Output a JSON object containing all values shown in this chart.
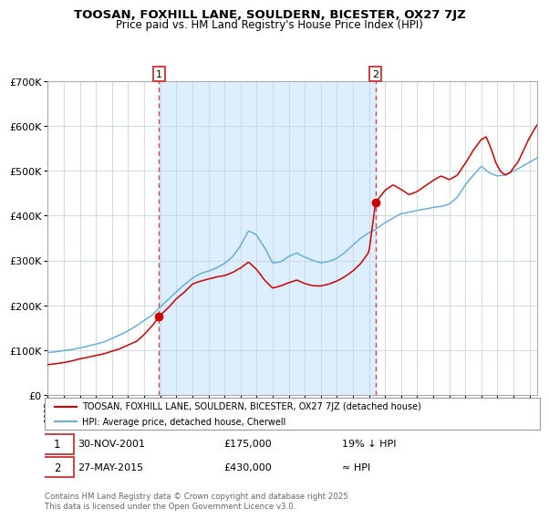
{
  "title": "TOOSAN, FOXHILL LANE, SOULDERN, BICESTER, OX27 7JZ",
  "subtitle": "Price paid vs. HM Land Registry's House Price Index (HPI)",
  "legend_line1": "TOOSAN, FOXHILL LANE, SOULDERN, BICESTER, OX27 7JZ (detached house)",
  "legend_line2": "HPI: Average price, detached house, Cherwell",
  "purchase1_date": "30-NOV-2001",
  "purchase1_price": 175000,
  "purchase1_note": "19% ↓ HPI",
  "purchase2_date": "27-MAY-2015",
  "purchase2_price": 430000,
  "purchase2_note": "≈ HPI",
  "footer": "Contains HM Land Registry data © Crown copyright and database right 2025.\nThis data is licensed under the Open Government Licence v3.0.",
  "vline1_year": 2001.92,
  "vline2_year": 2015.41,
  "hpi_color": "#6baed6",
  "price_color": "#cc0000",
  "bg_band_color": "#ddeeff",
  "grid_color": "#c8d4e0",
  "ylim": [
    0,
    700000
  ],
  "xlim_start": 1995.0,
  "xlim_end": 2025.5,
  "p1_x": 2001.92,
  "p1_y": 175000,
  "p2_x": 2015.41,
  "p2_y": 430000
}
